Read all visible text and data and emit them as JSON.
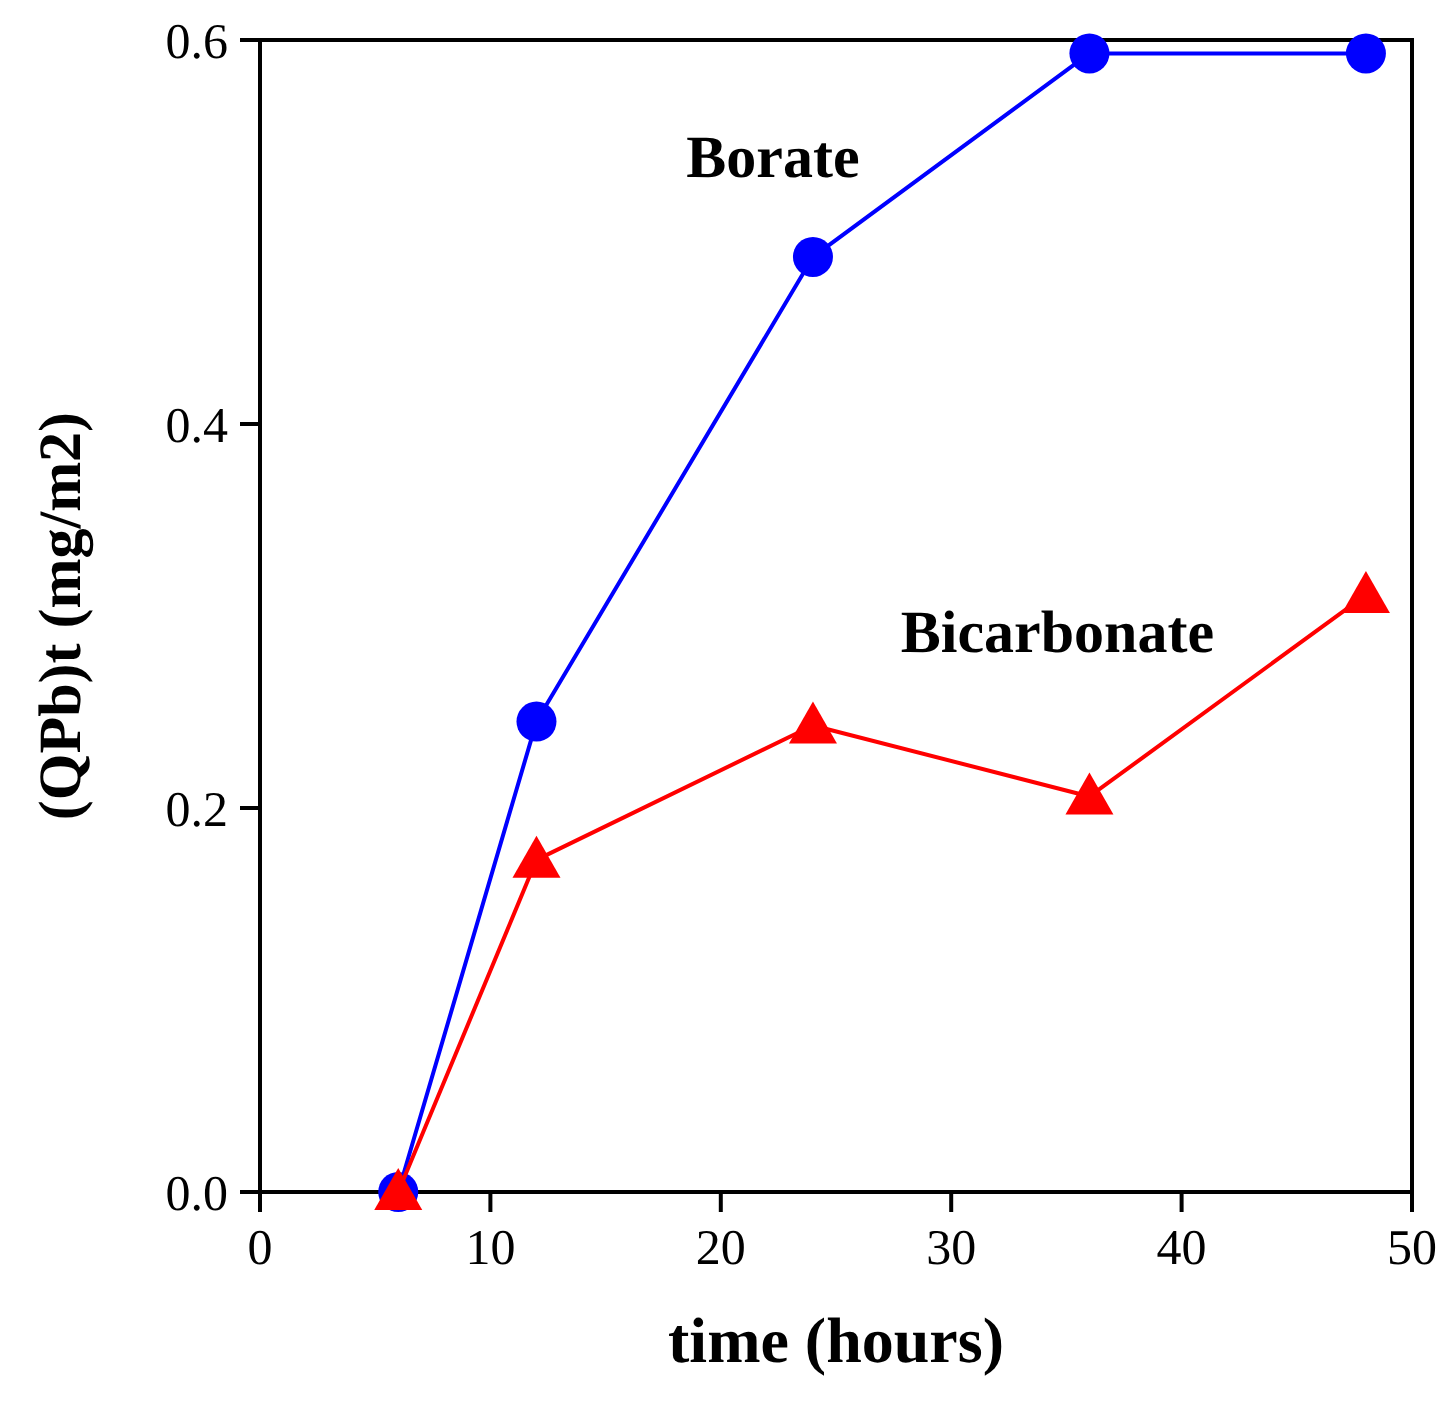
{
  "chart_data": {
    "type": "line",
    "xlabel": "time (hours)",
    "ylabel": "(QPb)t (mg/m2)",
    "xlim": [
      0,
      50
    ],
    "xticks": [
      0,
      10,
      20,
      30,
      40,
      50
    ],
    "ylim": [
      0,
      0.6
    ],
    "yticks": [
      {
        "value": 0,
        "label": "0.0"
      },
      {
        "value": 0.2,
        "label": "0.2"
      },
      {
        "value": 0.4,
        "label": "0.4"
      },
      {
        "value": 0.6,
        "label": "0.6"
      }
    ],
    "x": [
      6,
      12,
      24,
      36,
      48
    ],
    "series": [
      {
        "name": "Borate",
        "color": "#0000ff",
        "marker": "circle",
        "values": [
          0.0,
          0.245,
          0.487,
          0.593,
          0.593
        ]
      },
      {
        "name": "Bicarbonate",
        "color": "#ff0000",
        "marker": "triangle",
        "values": [
          0.0,
          0.173,
          0.243,
          0.206,
          0.311
        ]
      }
    ]
  }
}
